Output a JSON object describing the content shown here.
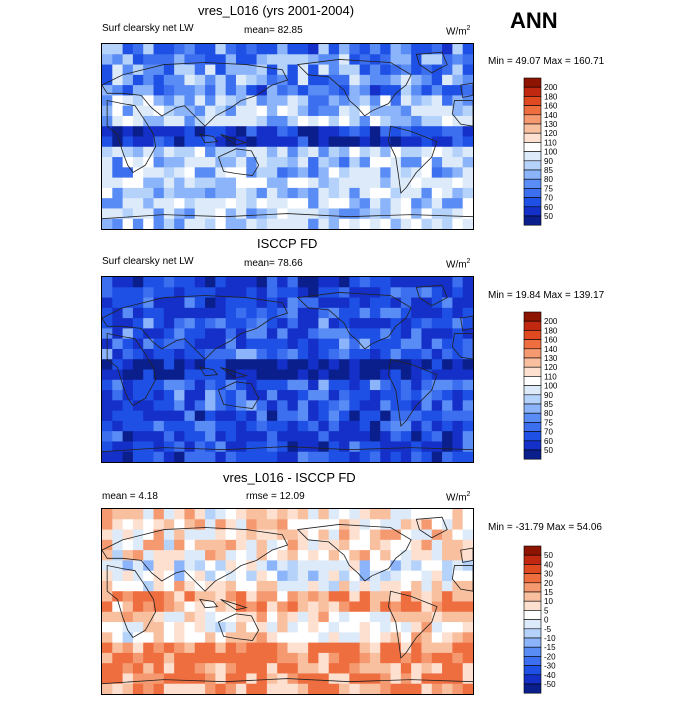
{
  "season": "ANN",
  "palettes": {
    "abs": [
      "#0a1e8c",
      "#1430c8",
      "#1e50e6",
      "#3c6ef0",
      "#5a8cf5",
      "#8cb4fa",
      "#b4d2fa",
      "#dceafa",
      "#ffffff",
      "#fde0cf",
      "#f9c0a0",
      "#f59a70",
      "#ee6e40",
      "#e04a20",
      "#c02810",
      "#8c1400"
    ],
    "diff": [
      "#0a1e8c",
      "#1430c8",
      "#1e50e6",
      "#3c6ef0",
      "#5a8cf5",
      "#8cb4fa",
      "#b4d2fa",
      "#dceafa",
      "#ffffff",
      "#fde0cf",
      "#f9c0a0",
      "#f59a70",
      "#ee6e40",
      "#e04a20",
      "#c02810",
      "#8c1400"
    ],
    "land_line": "#222222"
  },
  "panels": [
    {
      "title": "vres_L016 (yrs 2001-2004)",
      "left_label": "Surf clearsky net LW",
      "mean_label": "mean=",
      "mean_value": "82.85",
      "units_base": "W/m",
      "units_exp": "2",
      "minmax": "Min =  49.07 Max =  160.71",
      "colorbar_labels": [
        "200",
        "180",
        "160",
        "140",
        "130",
        "120",
        "110",
        "100",
        "90",
        "85",
        "80",
        "75",
        "70",
        "60",
        "50"
      ],
      "field": "model"
    },
    {
      "title": "ISCCP FD",
      "left_label": "Surf clearsky net LW",
      "mean_label": "mean=",
      "mean_value": "78.66",
      "units_base": "W/m",
      "units_exp": "2",
      "minmax": "Min =  19.84 Max =  139.17",
      "colorbar_labels": [
        "200",
        "180",
        "160",
        "140",
        "130",
        "120",
        "110",
        "100",
        "90",
        "85",
        "80",
        "75",
        "70",
        "60",
        "50"
      ],
      "field": "obs"
    },
    {
      "title": "vres_L016 - ISCCP FD",
      "left_label": "mean =   4.18",
      "mean_label": "rmse =",
      "mean_value": "12.09",
      "units_base": "W/m",
      "units_exp": "2",
      "minmax": "Min = -31.79 Max =  54.06",
      "colorbar_labels": [
        "50",
        "40",
        "30",
        "20",
        "15",
        "10",
        "5",
        "0",
        "-5",
        "-10",
        "-15",
        "-20",
        "-30",
        "-40",
        "-50"
      ],
      "field": "diff"
    }
  ]
}
